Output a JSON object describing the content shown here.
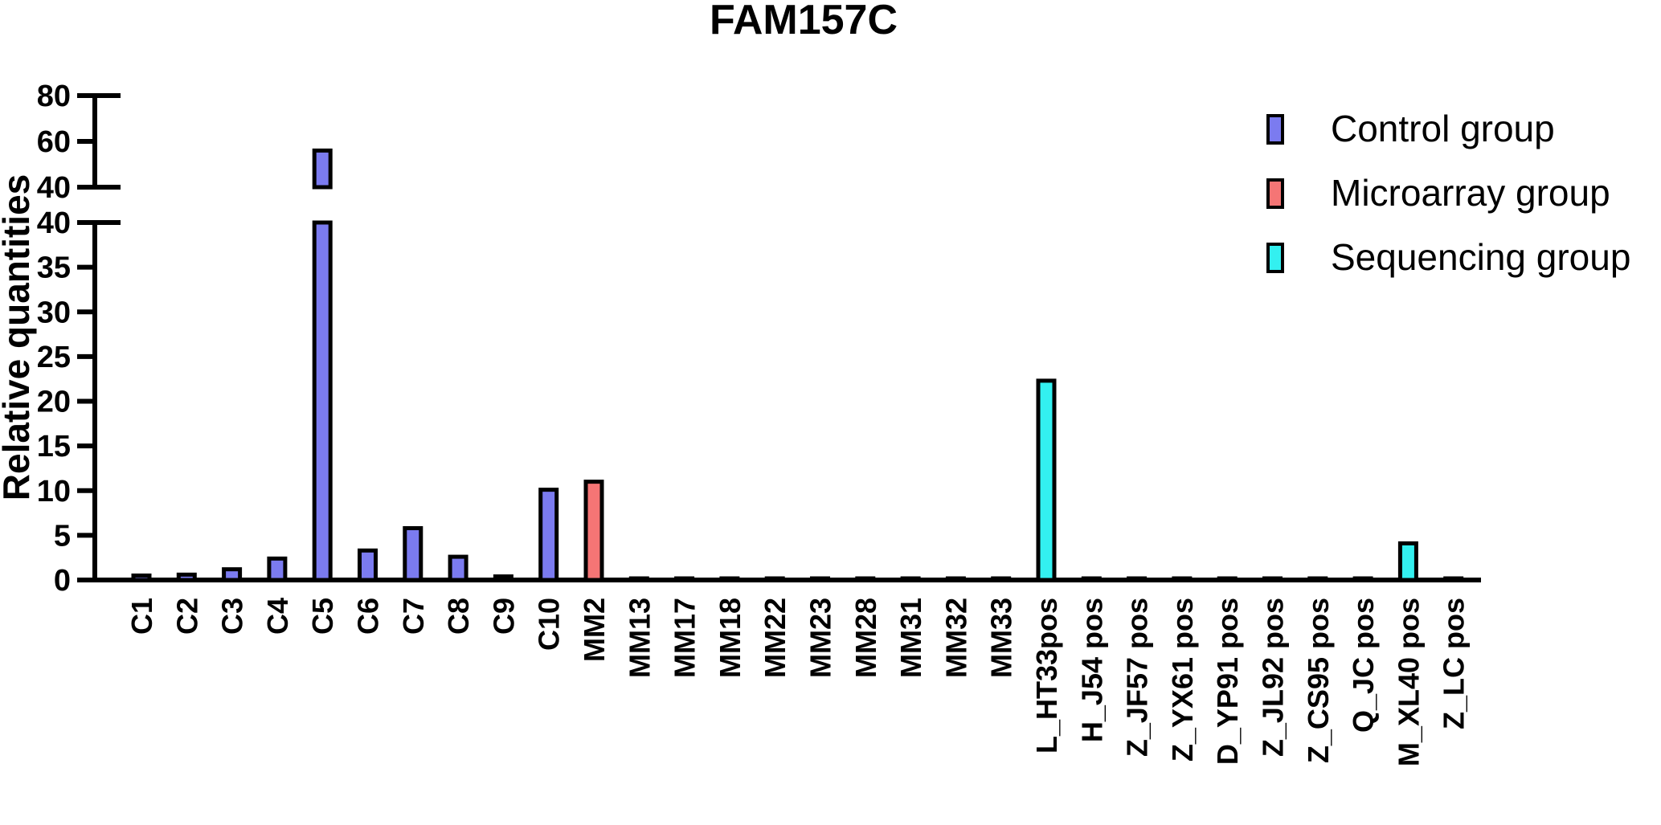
{
  "colors": {
    "Control group": "#7b7bf0",
    "Microarray group": "#f57575",
    "Sequencing group": "#33f0f0"
  },
  "chart_data": {
    "type": "bar",
    "title": "FAM157C",
    "ylabel": "Relative quantities",
    "xlabel": "",
    "y_axis_break": {
      "lower_range": [
        0,
        40
      ],
      "upper_range": [
        40,
        80
      ]
    },
    "lower_ticks": [
      "0",
      "5",
      "10",
      "15",
      "20",
      "25",
      "30",
      "35",
      "40"
    ],
    "upper_ticks": [
      "40",
      "60",
      "80"
    ],
    "legend_position": "top-right",
    "legend": [
      "Control group",
      "Microarray group",
      "Sequencing group"
    ],
    "categories": [
      "C1",
      "C2",
      "C3",
      "C4",
      "C5",
      "C6",
      "C7",
      "C8",
      "C9",
      "C10",
      "MM2",
      "MM13",
      "MM17",
      "MM18",
      "MM22",
      "MM23",
      "MM28",
      "MM31",
      "MM32",
      "MM33",
      "L_HT33pos",
      "H_J54 pos",
      "Z_JF57 pos",
      "Z_YX61 pos",
      "D_YP91 pos",
      "Z_JL92 pos",
      "Z_CS95 pos",
      "Q_JC pos",
      "M_XL40 pos",
      "Z_LC pos"
    ],
    "values": [
      0.5,
      0.6,
      1.2,
      2.4,
      56,
      3.3,
      5.8,
      2.6,
      0.4,
      10.1,
      11,
      0.1,
      0.1,
      0.1,
      0.1,
      0.1,
      0.1,
      0.1,
      0.1,
      0.1,
      22.3,
      0.1,
      0.1,
      0.1,
      0.1,
      0.1,
      0.1,
      0.1,
      4.1,
      0.1
    ],
    "groups": [
      "Control group",
      "Control group",
      "Control group",
      "Control group",
      "Control group",
      "Control group",
      "Control group",
      "Control group",
      "Control group",
      "Control group",
      "Microarray group",
      "Microarray group",
      "Microarray group",
      "Microarray group",
      "Microarray group",
      "Microarray group",
      "Microarray group",
      "Microarray group",
      "Microarray group",
      "Microarray group",
      "Sequencing group",
      "Sequencing group",
      "Sequencing group",
      "Sequencing group",
      "Sequencing group",
      "Sequencing group",
      "Sequencing group",
      "Sequencing group",
      "Sequencing group",
      "Sequencing group"
    ]
  }
}
